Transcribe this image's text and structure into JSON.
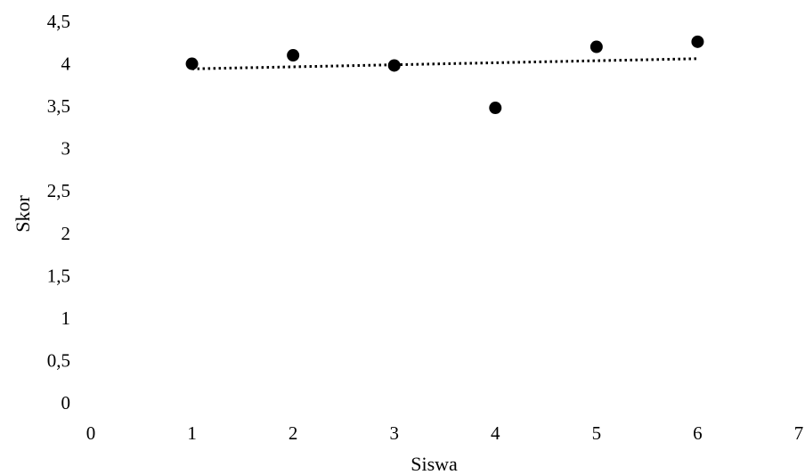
{
  "chart_data": {
    "type": "scatter",
    "title": "",
    "xlabel": "Siswa",
    "ylabel": "Skor",
    "xlim": [
      0,
      7
    ],
    "ylim": [
      0,
      4.5
    ],
    "x_ticks": [
      0,
      1,
      2,
      3,
      4,
      5,
      6,
      7
    ],
    "y_ticks": [
      0,
      0.5,
      1,
      1.5,
      2,
      2.5,
      3,
      3.5,
      4,
      4.5
    ],
    "x_tick_labels": [
      "0",
      "1",
      "2",
      "3",
      "4",
      "5",
      "6",
      "7"
    ],
    "y_tick_labels": [
      "0",
      "0,5",
      "1",
      "1,5",
      "2",
      "2,5",
      "3",
      "3,5",
      "4",
      "4,5"
    ],
    "grid": false,
    "legend": "none",
    "points": [
      {
        "x": 1,
        "y": 4.0
      },
      {
        "x": 2,
        "y": 4.1
      },
      {
        "x": 3,
        "y": 3.98
      },
      {
        "x": 4,
        "y": 3.48
      },
      {
        "x": 5,
        "y": 4.2
      },
      {
        "x": 6,
        "y": 4.26
      }
    ],
    "trendline": {
      "style": "dotted",
      "type": "linear",
      "x": [
        1,
        6
      ],
      "y": [
        3.94,
        4.06
      ]
    },
    "marker_color": "#000000",
    "trendline_color": "#000000"
  }
}
